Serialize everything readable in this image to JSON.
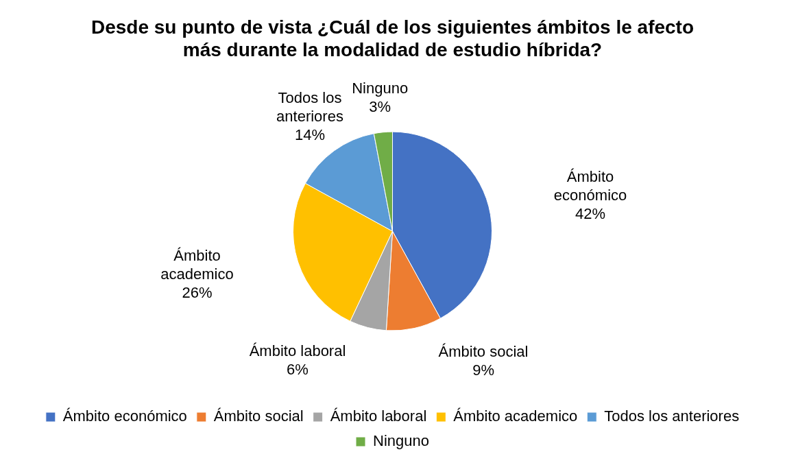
{
  "chart_data": {
    "type": "pie",
    "title": "Desde su punto de vista ¿Cuál de los siguientes ámbitos le afecto más durante la modalidad de estudio híbrida?",
    "categories": [
      "Ámbito económico",
      "Ámbito social",
      "Ámbito laboral",
      "Ámbito academico",
      "Todos los anteriores",
      "Ninguno"
    ],
    "values": [
      42,
      9,
      6,
      26,
      14,
      3
    ],
    "colors": [
      "#4472c4",
      "#ed7d31",
      "#a5a5a5",
      "#ffc000",
      "#5b9bd5",
      "#70ad47"
    ],
    "value_labels": [
      "42%",
      "9%",
      "6%",
      "26%",
      "14%",
      "3%"
    ],
    "legend": "bottom"
  }
}
